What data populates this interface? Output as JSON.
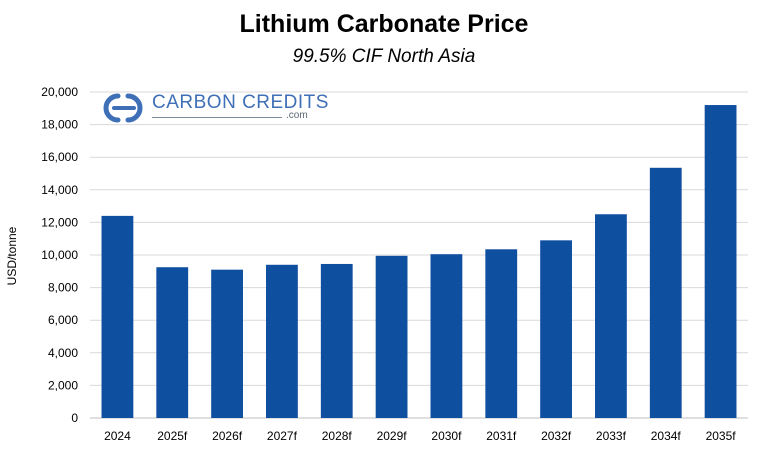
{
  "chart_data": {
    "type": "bar",
    "title": "Lithium Carbonate Price",
    "subtitle": "99.5% CIF North Asia",
    "ylabel": "USD/tonne",
    "xlabel": "",
    "ylim": [
      0,
      20000
    ],
    "yticks": [
      0,
      2000,
      4000,
      6000,
      8000,
      10000,
      12000,
      14000,
      16000,
      18000,
      20000
    ],
    "ytick_labels": [
      "0",
      "2,000",
      "4,000",
      "6,000",
      "8,000",
      "10,000",
      "12,000",
      "14,000",
      "16,000",
      "18,000",
      "20,000"
    ],
    "categories": [
      "2024",
      "2025f",
      "2026f",
      "2027f",
      "2028f",
      "2029f",
      "2030f",
      "2031f",
      "2032f",
      "2033f",
      "2034f",
      "2035f"
    ],
    "values": [
      12400,
      9250,
      9100,
      9400,
      9450,
      9950,
      10050,
      10350,
      10900,
      12500,
      15350,
      19200
    ],
    "bar_color": "#0f4fa0",
    "grid": true
  },
  "logo": {
    "name": "CARBON CREDITS",
    "suffix": ".com",
    "icon": "carbon-credits-logo-icon",
    "color": "#3f6fb6"
  }
}
